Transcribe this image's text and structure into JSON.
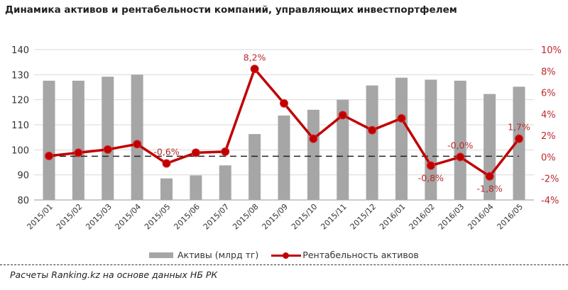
{
  "title": "Динамика  активов  и рентабельности  компаний,  управляющих инвестпортфелем",
  "legend": {
    "bars": "Активы (млрд тг)",
    "line": "Рентабельность активов"
  },
  "source": "Расчеты Ranking.kz на основе данных НБ РК",
  "colors": {
    "bars": "#a6a6a6",
    "line": "#c00000",
    "labels": "#b52a2e",
    "grid": "#d9d9d9"
  },
  "chart_data": {
    "type": "bar+line",
    "title": "Динамика активов и рентабельности компаний, управляющих инвестпортфелем",
    "categories": [
      "2015/01",
      "2015/02",
      "2015/03",
      "2015/04",
      "2015/05",
      "2015/06",
      "2015/07",
      "2015/08",
      "2015/09",
      "2015/10",
      "2015/11",
      "2015/12",
      "2016/01",
      "2016/02",
      "2016/03",
      "2016/04",
      "2016/05"
    ],
    "series": [
      {
        "name": "Активы (млрд тг)",
        "type": "bar",
        "axis": "left",
        "values": [
          127.6,
          127.6,
          129.2,
          130.0,
          88.6,
          89.8,
          93.8,
          106.3,
          113.7,
          116.0,
          120.0,
          125.7,
          128.8,
          128.0,
          127.6,
          122.3,
          125.2
        ]
      },
      {
        "name": "Рентабельность активов",
        "type": "line",
        "axis": "right",
        "unit": "%",
        "values": [
          0.1,
          0.4,
          0.7,
          1.2,
          -0.6,
          0.4,
          0.5,
          8.2,
          5.0,
          1.7,
          3.9,
          2.5,
          3.6,
          -0.8,
          0.0,
          -1.8,
          1.7
        ]
      }
    ],
    "data_labels": [
      {
        "category": "2015/05",
        "text": "-0,6%"
      },
      {
        "category": "2015/08",
        "text": "8,2%"
      },
      {
        "category": "2016/02",
        "text": "-0,8%"
      },
      {
        "category": "2016/03",
        "text": "-0,0%"
      },
      {
        "category": "2016/04",
        "text": "-1,8%"
      },
      {
        "category": "2016/05",
        "text": "1,7%"
      }
    ],
    "y_left": {
      "ylim": [
        80,
        140
      ],
      "ticks": [
        "140",
        "130",
        "120",
        "110",
        "100",
        "90",
        "80"
      ]
    },
    "y_right": {
      "ylim": [
        -4,
        10
      ],
      "ticks": [
        "10%",
        "8%",
        "6%",
        "4%",
        "2%",
        "0%",
        "-2%",
        "-4%"
      ]
    },
    "reference_line": {
      "axis": "right",
      "value": 0,
      "style": "dashed"
    },
    "grid": true,
    "legend_position": "bottom"
  }
}
